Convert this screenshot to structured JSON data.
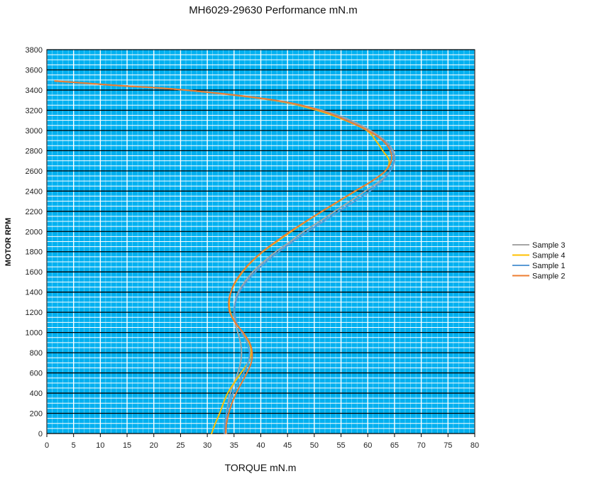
{
  "chart_data": {
    "type": "line",
    "title": "MH6029-29630    Performance mN.m",
    "xlabel": "TORQUE mN.m",
    "ylabel": "MOTOR RPM",
    "xlim": [
      0,
      80
    ],
    "ylim": [
      0,
      3800
    ],
    "xticks": [
      0,
      5,
      10,
      15,
      20,
      25,
      30,
      35,
      40,
      45,
      50,
      55,
      60,
      65,
      70,
      75,
      80
    ],
    "yticks": [
      0,
      200,
      400,
      600,
      800,
      1000,
      1200,
      1400,
      1600,
      1800,
      2000,
      2200,
      2400,
      2600,
      2800,
      3000,
      3200,
      3400,
      3600,
      3800
    ],
    "grid": true,
    "legend_position": "right",
    "background": "#00b0f0",
    "major_gridline_color": "#000000",
    "minor_gridline_color": "#ffffff",
    "series": [
      {
        "name": "Sample 3",
        "color": "#a5a5a5",
        "points": [
          [
            33.6,
            0
          ],
          [
            33.5,
            100
          ],
          [
            33.6,
            200
          ],
          [
            33.9,
            300
          ],
          [
            34.3,
            400
          ],
          [
            35,
            500
          ],
          [
            35.7,
            600
          ],
          [
            36.2,
            700
          ],
          [
            36.4,
            800
          ],
          [
            36.2,
            900
          ],
          [
            35.7,
            1000
          ],
          [
            35.2,
            1100
          ],
          [
            35,
            1200
          ],
          [
            35.2,
            1300
          ],
          [
            35.8,
            1400
          ],
          [
            37,
            1500
          ],
          [
            38.5,
            1600
          ],
          [
            40.5,
            1700
          ],
          [
            42.8,
            1800
          ],
          [
            45.5,
            1900
          ],
          [
            48,
            2000
          ],
          [
            51,
            2100
          ],
          [
            53.8,
            2200
          ],
          [
            56.7,
            2300
          ],
          [
            59.5,
            2400
          ],
          [
            62.3,
            2500
          ],
          [
            64.2,
            2600
          ],
          [
            65,
            2700
          ],
          [
            64.7,
            2800
          ],
          [
            63.2,
            2900
          ],
          [
            60.5,
            3000
          ],
          [
            56.8,
            3100
          ],
          [
            51.5,
            3200
          ],
          [
            42.5,
            3300
          ],
          [
            26,
            3400
          ],
          [
            12,
            3450
          ],
          [
            1.5,
            3490
          ]
        ]
      },
      {
        "name": "Sample 4",
        "color": "#ffc000",
        "points": [
          [
            30.8,
            0
          ],
          [
            31.5,
            100
          ],
          [
            32.3,
            200
          ],
          [
            33,
            300
          ],
          [
            33.8,
            400
          ],
          [
            35,
            500
          ],
          [
            36.3,
            600
          ],
          [
            37.6,
            700
          ],
          [
            38.2,
            800
          ],
          [
            37.8,
            900
          ],
          [
            36.6,
            1000
          ],
          [
            35.2,
            1100
          ],
          [
            34.3,
            1200
          ],
          [
            34.1,
            1300
          ],
          [
            34.4,
            1400
          ],
          [
            35.3,
            1500
          ],
          [
            36.6,
            1600
          ],
          [
            38.3,
            1700
          ],
          [
            40.4,
            1800
          ],
          [
            43,
            1900
          ],
          [
            45.7,
            2000
          ],
          [
            48.5,
            2100
          ],
          [
            51.5,
            2200
          ],
          [
            54.6,
            2300
          ],
          [
            57.7,
            2400
          ],
          [
            60.8,
            2500
          ],
          [
            63.3,
            2600
          ],
          [
            64,
            2700
          ],
          [
            62.8,
            2800
          ],
          [
            61.5,
            2900
          ],
          [
            59.8,
            3000
          ],
          [
            55.8,
            3100
          ],
          [
            50.5,
            3200
          ],
          [
            42,
            3300
          ],
          [
            26,
            3400
          ],
          [
            12,
            3450
          ],
          [
            1.5,
            3490
          ]
        ]
      },
      {
        "name": "Sample 1",
        "color": "#5b9bd5",
        "points": [
          [
            33.2,
            0
          ],
          [
            33.3,
            100
          ],
          [
            33.6,
            200
          ],
          [
            34.1,
            300
          ],
          [
            34.8,
            400
          ],
          [
            35.8,
            500
          ],
          [
            36.8,
            600
          ],
          [
            37.6,
            700
          ],
          [
            37.9,
            800
          ],
          [
            37.4,
            900
          ],
          [
            36.4,
            1000
          ],
          [
            35.5,
            1100
          ],
          [
            35.1,
            1200
          ],
          [
            35.3,
            1300
          ],
          [
            36,
            1400
          ],
          [
            37.3,
            1500
          ],
          [
            39,
            1600
          ],
          [
            41,
            1700
          ],
          [
            43.4,
            1800
          ],
          [
            46,
            1900
          ],
          [
            48.8,
            2000
          ],
          [
            51.7,
            2100
          ],
          [
            54.6,
            2200
          ],
          [
            57.6,
            2300
          ],
          [
            60.4,
            2400
          ],
          [
            62.7,
            2500
          ],
          [
            64.2,
            2600
          ],
          [
            64.9,
            2700
          ],
          [
            64.5,
            2800
          ],
          [
            63,
            2900
          ],
          [
            60,
            3000
          ],
          [
            56.3,
            3100
          ],
          [
            51,
            3200
          ],
          [
            42.3,
            3300
          ],
          [
            26,
            3400
          ],
          [
            12,
            3450
          ],
          [
            1.5,
            3490
          ]
        ]
      },
      {
        "name": "Sample 2",
        "color": "#ed7d31",
        "points": [
          [
            33.4,
            0
          ],
          [
            33.6,
            100
          ],
          [
            34,
            200
          ],
          [
            34.6,
            300
          ],
          [
            35.4,
            400
          ],
          [
            36.4,
            500
          ],
          [
            37.4,
            600
          ],
          [
            38.2,
            700
          ],
          [
            38.4,
            800
          ],
          [
            37.9,
            900
          ],
          [
            36.7,
            1000
          ],
          [
            35.2,
            1100
          ],
          [
            34.2,
            1200
          ],
          [
            34,
            1300
          ],
          [
            34.4,
            1400
          ],
          [
            35.2,
            1500
          ],
          [
            36.5,
            1600
          ],
          [
            38.2,
            1700
          ],
          [
            40.3,
            1800
          ],
          [
            42.8,
            1900
          ],
          [
            45.5,
            2000
          ],
          [
            48.4,
            2100
          ],
          [
            51.4,
            2200
          ],
          [
            54.5,
            2300
          ],
          [
            57.6,
            2400
          ],
          [
            60.8,
            2500
          ],
          [
            63.3,
            2600
          ],
          [
            64.4,
            2700
          ],
          [
            64.2,
            2800
          ],
          [
            62.8,
            2900
          ],
          [
            60,
            3000
          ],
          [
            56,
            3100
          ],
          [
            51,
            3200
          ],
          [
            42.6,
            3300
          ],
          [
            26,
            3400
          ],
          [
            12,
            3450
          ],
          [
            1.5,
            3490
          ]
        ]
      }
    ]
  }
}
